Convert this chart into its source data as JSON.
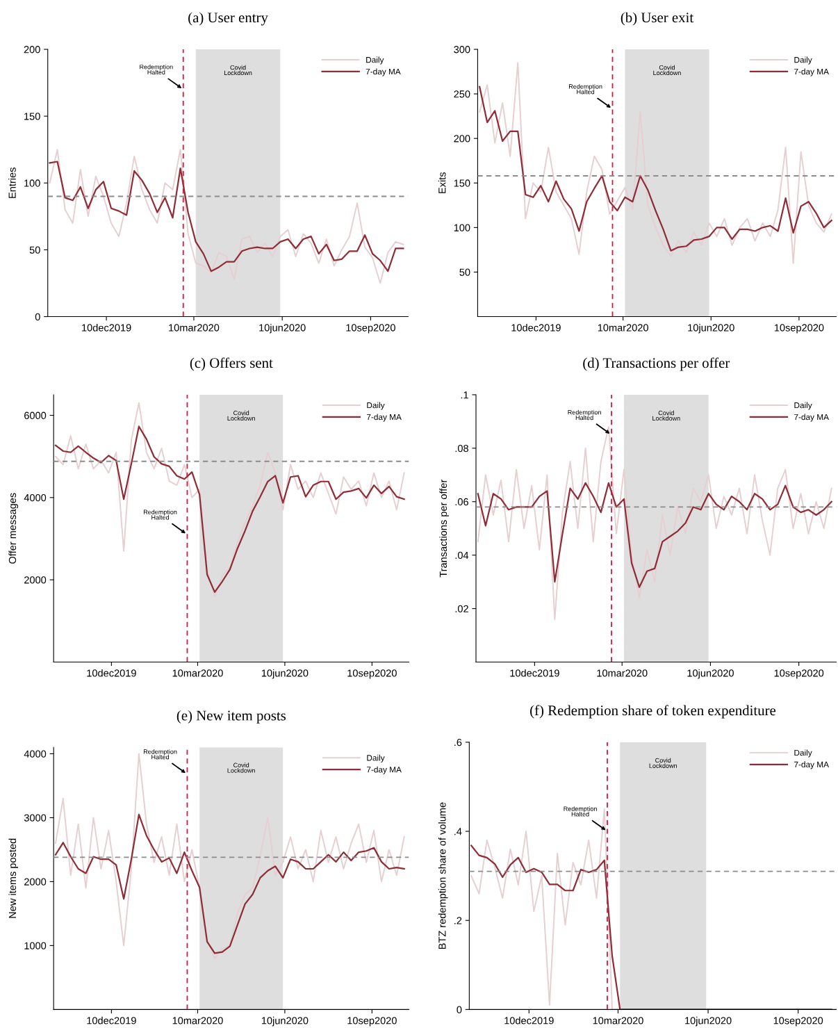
{
  "chart_data": [
    {
      "type": "line",
      "title": "(a) User entry",
      "ylabel": "Entries",
      "xlim": [
        "2019-10-10",
        "2020-10-19"
      ],
      "ylim": [
        0,
        200
      ],
      "yticks": [
        0,
        50,
        100,
        150,
        200
      ],
      "xticks": [
        {
          "value": "2019-12-10",
          "label": "10dec2019"
        },
        {
          "value": "2020-03-10",
          "label": "10mar2020"
        },
        {
          "value": "2020-06-10",
          "label": "10jun2020"
        },
        {
          "value": "2020-09-10",
          "label": "10sep2020"
        }
      ],
      "x": [
        "2019-10-12",
        "2019-10-20",
        "2019-10-28",
        "2019-11-05",
        "2019-11-13",
        "2019-11-21",
        "2019-11-29",
        "2019-12-07",
        "2019-12-15",
        "2019-12-23",
        "2019-12-31",
        "2020-01-08",
        "2020-01-16",
        "2020-01-24",
        "2020-02-01",
        "2020-02-09",
        "2020-02-17",
        "2020-02-25",
        "2020-03-04",
        "2020-03-12",
        "2020-03-20",
        "2020-03-28",
        "2020-04-05",
        "2020-04-13",
        "2020-04-21",
        "2020-04-29",
        "2020-05-07",
        "2020-05-15",
        "2020-05-23",
        "2020-05-31",
        "2020-06-08",
        "2020-06-16",
        "2020-06-24",
        "2020-07-02",
        "2020-07-10",
        "2020-07-18",
        "2020-07-26",
        "2020-08-03",
        "2020-08-11",
        "2020-08-19",
        "2020-08-27",
        "2020-09-04",
        "2020-09-12",
        "2020-09-20",
        "2020-09-28",
        "2020-10-06",
        "2020-10-14"
      ],
      "series": [
        {
          "name": "Daily",
          "color": "#e6cfd1",
          "values": [
            100,
            125,
            80,
            70,
            110,
            75,
            105,
            90,
            70,
            60,
            85,
            120,
            95,
            80,
            70,
            100,
            95,
            125,
            62,
            40,
            38,
            33,
            48,
            45,
            28,
            58,
            60,
            48,
            55,
            45,
            60,
            65,
            45,
            62,
            55,
            40,
            58,
            38,
            50,
            60,
            85,
            52,
            44,
            25,
            48,
            56,
            54
          ]
        },
        {
          "name": "7-day MA",
          "color": "#8f2d37",
          "values": [
            115,
            116,
            89,
            87,
            97,
            81,
            95,
            101,
            81,
            79,
            76,
            109,
            102,
            92,
            78,
            89,
            74,
            111,
            78,
            56,
            47,
            34,
            37,
            41,
            41,
            49,
            51,
            52,
            51,
            51,
            56,
            58,
            51,
            58,
            60,
            47,
            54,
            42,
            43,
            49,
            49,
            61,
            47,
            42,
            34,
            51,
            51
          ]
        }
      ],
      "ref_lines": [
        {
          "axis": "x",
          "value": "2020-02-28",
          "color": "#dc143c",
          "line_style": "dashed"
        },
        {
          "axis": "y",
          "value": 90,
          "color": "#8c8c8c",
          "line_style": "dashed"
        }
      ],
      "bands": [
        {
          "axis": "x",
          "from": "2020-03-12",
          "to": "2020-06-08",
          "label": "Covid\nLockdown",
          "color": "#dedede"
        }
      ],
      "annotations": [
        {
          "text": "Redemption\nHalted",
          "x": "2020-02-28",
          "y": 170
        }
      ],
      "legend": "top right",
      "grid": false
    },
    {
      "type": "line",
      "title": "(b) User exit",
      "ylabel": "Exits",
      "xlim": [
        "2019-10-10",
        "2020-10-19"
      ],
      "ylim": [
        0,
        300
      ],
      "yticks": [
        50,
        100,
        150,
        200,
        250,
        300
      ],
      "xticks": [
        {
          "value": "2019-12-10",
          "label": "10dec2019"
        },
        {
          "value": "2020-03-10",
          "label": "10mar2020"
        },
        {
          "value": "2020-06-10",
          "label": "10jun2020"
        },
        {
          "value": "2020-09-10",
          "label": "10sep2020"
        }
      ],
      "x": [
        "2019-10-12",
        "2019-10-20",
        "2019-10-28",
        "2019-11-05",
        "2019-11-13",
        "2019-11-21",
        "2019-11-29",
        "2019-12-07",
        "2019-12-15",
        "2019-12-23",
        "2019-12-31",
        "2020-01-08",
        "2020-01-16",
        "2020-01-24",
        "2020-02-01",
        "2020-02-09",
        "2020-02-17",
        "2020-02-25",
        "2020-03-04",
        "2020-03-12",
        "2020-03-20",
        "2020-03-28",
        "2020-04-05",
        "2020-04-13",
        "2020-04-21",
        "2020-04-29",
        "2020-05-07",
        "2020-05-15",
        "2020-05-23",
        "2020-05-31",
        "2020-06-08",
        "2020-06-16",
        "2020-06-24",
        "2020-07-02",
        "2020-07-10",
        "2020-07-18",
        "2020-07-26",
        "2020-08-03",
        "2020-08-11",
        "2020-08-19",
        "2020-08-27",
        "2020-09-04",
        "2020-09-12",
        "2020-09-20",
        "2020-09-28",
        "2020-10-06",
        "2020-10-14"
      ],
      "series": [
        {
          "name": "Daily",
          "color": "#e6cfd1",
          "values": [
            230,
            260,
            195,
            240,
            180,
            285,
            110,
            150,
            140,
            190,
            140,
            125,
            110,
            70,
            140,
            180,
            165,
            115,
            130,
            145,
            120,
            230,
            125,
            100,
            80,
            68,
            85,
            72,
            95,
            80,
            105,
            90,
            110,
            80,
            100,
            110,
            85,
            105,
            90,
            120,
            190,
            60,
            185,
            125,
            105,
            95,
            115
          ]
        },
        {
          "name": "7-day MA",
          "color": "#8f2d37",
          "values": [
            258,
            218,
            231,
            197,
            208,
            208,
            137,
            134,
            147,
            129,
            152,
            132,
            121,
            96,
            129,
            144,
            158,
            129,
            119,
            134,
            129,
            158,
            142,
            119,
            98,
            74,
            78,
            79,
            86,
            87,
            90,
            100,
            100,
            87,
            98,
            98,
            96,
            100,
            102,
            96,
            133,
            94,
            124,
            129,
            116,
            100,
            108
          ]
        }
      ],
      "ref_lines": [
        {
          "axis": "x",
          "value": "2020-02-28",
          "color": "#dc143c",
          "line_style": "dashed"
        },
        {
          "axis": "y",
          "value": 158,
          "color": "#8c8c8c",
          "line_style": "dashed"
        }
      ],
      "bands": [
        {
          "axis": "x",
          "from": "2020-03-12",
          "to": "2020-06-08",
          "label": "Covid\nLockdown",
          "color": "#dedede"
        }
      ],
      "annotations": [
        {
          "text": "Redemption\nHalted",
          "x": "2020-02-28",
          "y": 233
        }
      ],
      "legend": "top right",
      "grid": false
    },
    {
      "type": "line",
      "title": "(c) Offers sent",
      "ylabel": "Offer messages",
      "xlim": [
        "2019-10-10",
        "2020-10-19"
      ],
      "ylim": [
        0,
        6500
      ],
      "yticks": [
        2000,
        4000,
        6000
      ],
      "xticks": [
        {
          "value": "2019-12-10",
          "label": "10dec2019"
        },
        {
          "value": "2020-03-10",
          "label": "10mar2020"
        },
        {
          "value": "2020-06-10",
          "label": "10jun2020"
        },
        {
          "value": "2020-09-10",
          "label": "10sep2020"
        }
      ],
      "x": [
        "2019-10-12",
        "2019-10-20",
        "2019-10-28",
        "2019-11-05",
        "2019-11-13",
        "2019-11-21",
        "2019-11-29",
        "2019-12-07",
        "2019-12-15",
        "2019-12-23",
        "2019-12-31",
        "2020-01-08",
        "2020-01-16",
        "2020-01-24",
        "2020-02-01",
        "2020-02-09",
        "2020-02-17",
        "2020-02-25",
        "2020-03-04",
        "2020-03-12",
        "2020-03-20",
        "2020-03-28",
        "2020-04-05",
        "2020-04-13",
        "2020-04-21",
        "2020-04-29",
        "2020-05-07",
        "2020-05-15",
        "2020-05-23",
        "2020-05-31",
        "2020-06-08",
        "2020-06-16",
        "2020-06-24",
        "2020-07-02",
        "2020-07-10",
        "2020-07-18",
        "2020-07-26",
        "2020-08-03",
        "2020-08-11",
        "2020-08-19",
        "2020-08-27",
        "2020-09-04",
        "2020-09-12",
        "2020-09-20",
        "2020-09-28",
        "2020-10-06",
        "2020-10-14"
      ],
      "series": [
        {
          "name": "Daily",
          "color": "#e6cfd1",
          "values": [
            5000,
            4800,
            5500,
            4700,
            5300,
            4700,
            4900,
            4600,
            5100,
            2700,
            5400,
            6300,
            5100,
            4700,
            5200,
            4400,
            4300,
            4800,
            4000,
            4200,
            2200,
            1600,
            2100,
            2300,
            2900,
            3400,
            3800,
            4300,
            5100,
            4600,
            3700,
            4800,
            4200,
            4400,
            4000,
            4600,
            4100,
            3600,
            4500,
            4200,
            4400,
            3800,
            4600,
            4000,
            4400,
            3700,
            4600
          ]
        },
        {
          "name": "7-day MA",
          "color": "#8f2d37",
          "values": [
            5270,
            5130,
            5100,
            5250,
            5100,
            4960,
            4850,
            5020,
            4900,
            3960,
            4820,
            5730,
            5420,
            4990,
            4820,
            4760,
            4530,
            4450,
            4620,
            4070,
            2130,
            1700,
            1960,
            2250,
            2760,
            3190,
            3670,
            4020,
            4390,
            4530,
            3870,
            4500,
            4530,
            4020,
            4300,
            4390,
            4390,
            3960,
            4130,
            4160,
            4220,
            3990,
            4300,
            4100,
            4270,
            4020,
            3960
          ]
        }
      ],
      "ref_lines": [
        {
          "axis": "x",
          "value": "2020-02-28",
          "color": "#dc143c",
          "line_style": "dashed"
        },
        {
          "axis": "y",
          "value": 4880,
          "color": "#8c8c8c",
          "line_style": "dashed"
        }
      ],
      "bands": [
        {
          "axis": "x",
          "from": "2020-03-12",
          "to": "2020-06-08",
          "label": "Covid\nLockdown",
          "color": "#dedede"
        }
      ],
      "annotations": [
        {
          "text": "Redemption\nHalted",
          "x": "2020-02-28",
          "y": 3100
        }
      ],
      "legend": "top right",
      "grid": false
    },
    {
      "type": "line",
      "title": "(d) Transactions per offer",
      "ylabel": "Transactions per offer",
      "xlim": [
        "2019-10-10",
        "2020-10-19"
      ],
      "ylim": [
        0,
        0.1
      ],
      "yticks": [
        {
          "value": 0.02,
          "label": ".02"
        },
        {
          "value": 0.04,
          "label": ".04"
        },
        {
          "value": 0.06,
          "label": ".06"
        },
        {
          "value": 0.08,
          "label": ".08"
        },
        {
          "value": 0.1,
          "label": ".1"
        }
      ],
      "xticks": [
        {
          "value": "2019-12-10",
          "label": "10dec2019"
        },
        {
          "value": "2020-03-10",
          "label": "10mar2020"
        },
        {
          "value": "2020-06-10",
          "label": "10jun2020"
        },
        {
          "value": "2020-09-10",
          "label": "10sep2020"
        }
      ],
      "x": [
        "2019-10-12",
        "2019-10-20",
        "2019-10-28",
        "2019-11-05",
        "2019-11-13",
        "2019-11-21",
        "2019-11-29",
        "2019-12-07",
        "2019-12-15",
        "2019-12-23",
        "2019-12-31",
        "2020-01-08",
        "2020-01-16",
        "2020-01-24",
        "2020-02-01",
        "2020-02-09",
        "2020-02-17",
        "2020-02-25",
        "2020-03-04",
        "2020-03-12",
        "2020-03-20",
        "2020-03-28",
        "2020-04-05",
        "2020-04-13",
        "2020-04-21",
        "2020-04-29",
        "2020-05-07",
        "2020-05-15",
        "2020-05-23",
        "2020-05-31",
        "2020-06-08",
        "2020-06-16",
        "2020-06-24",
        "2020-07-02",
        "2020-07-10",
        "2020-07-18",
        "2020-07-26",
        "2020-08-03",
        "2020-08-11",
        "2020-08-19",
        "2020-08-27",
        "2020-09-04",
        "2020-09-12",
        "2020-09-20",
        "2020-09-28",
        "2020-10-06",
        "2020-10-14"
      ],
      "series": [
        {
          "name": "Daily",
          "color": "#e6cfd1",
          "values": [
            0.045,
            0.07,
            0.055,
            0.068,
            0.045,
            0.072,
            0.05,
            0.066,
            0.042,
            0.07,
            0.016,
            0.056,
            0.075,
            0.05,
            0.08,
            0.045,
            0.075,
            0.088,
            0.048,
            0.072,
            0.04,
            0.024,
            0.042,
            0.03,
            0.055,
            0.04,
            0.058,
            0.048,
            0.065,
            0.06,
            0.07,
            0.05,
            0.062,
            0.055,
            0.065,
            0.048,
            0.07,
            0.053,
            0.04,
            0.065,
            0.072,
            0.05,
            0.063,
            0.048,
            0.06,
            0.05,
            0.065
          ]
        },
        {
          "name": "7-day MA",
          "color": "#8f2d37",
          "values": [
            0.063,
            0.051,
            0.063,
            0.061,
            0.057,
            0.058,
            0.058,
            0.058,
            0.062,
            0.064,
            0.03,
            0.048,
            0.065,
            0.061,
            0.067,
            0.062,
            0.056,
            0.067,
            0.058,
            0.061,
            0.037,
            0.028,
            0.034,
            0.035,
            0.045,
            0.047,
            0.049,
            0.052,
            0.058,
            0.057,
            0.063,
            0.059,
            0.057,
            0.062,
            0.06,
            0.057,
            0.063,
            0.061,
            0.057,
            0.059,
            0.066,
            0.058,
            0.056,
            0.057,
            0.055,
            0.057,
            0.06
          ]
        }
      ],
      "ref_lines": [
        {
          "axis": "x",
          "value": "2020-02-28",
          "color": "#dc143c",
          "line_style": "dashed"
        },
        {
          "axis": "y",
          "value": 0.058,
          "color": "#8c8c8c",
          "line_style": "dashed"
        }
      ],
      "bands": [
        {
          "axis": "x",
          "from": "2020-03-12",
          "to": "2020-06-08",
          "label": "Covid\nLockdown",
          "color": "#dedede"
        }
      ],
      "annotations": [
        {
          "text": "Redemption\nHalted",
          "x": "2020-02-28",
          "y": 0.085
        }
      ],
      "legend": "top right",
      "grid": false
    },
    {
      "type": "line",
      "title": "(e) New item posts",
      "ylabel": "New items posted",
      "xlim": [
        "2019-10-10",
        "2020-10-19"
      ],
      "ylim": [
        0,
        4100
      ],
      "yticks": [
        1000,
        2000,
        3000,
        4000
      ],
      "xticks": [
        {
          "value": "2019-12-10",
          "label": "10dec2019"
        },
        {
          "value": "2020-03-10",
          "label": "10mar2020"
        },
        {
          "value": "2020-06-10",
          "label": "10jun2020"
        },
        {
          "value": "2020-09-10",
          "label": "10sep2020"
        }
      ],
      "x": [
        "2019-10-12",
        "2019-10-20",
        "2019-10-28",
        "2019-11-05",
        "2019-11-13",
        "2019-11-21",
        "2019-11-29",
        "2019-12-07",
        "2019-12-15",
        "2019-12-23",
        "2019-12-31",
        "2020-01-08",
        "2020-01-16",
        "2020-01-24",
        "2020-02-01",
        "2020-02-09",
        "2020-02-17",
        "2020-02-25",
        "2020-03-04",
        "2020-03-12",
        "2020-03-20",
        "2020-03-28",
        "2020-04-05",
        "2020-04-13",
        "2020-04-21",
        "2020-04-29",
        "2020-05-07",
        "2020-05-15",
        "2020-05-23",
        "2020-05-31",
        "2020-06-08",
        "2020-06-16",
        "2020-06-24",
        "2020-07-02",
        "2020-07-10",
        "2020-07-18",
        "2020-07-26",
        "2020-08-03",
        "2020-08-11",
        "2020-08-19",
        "2020-08-27",
        "2020-09-04",
        "2020-09-12",
        "2020-09-20",
        "2020-09-28",
        "2020-10-06",
        "2020-10-14"
      ],
      "series": [
        {
          "name": "Daily",
          "color": "#e6cfd1",
          "values": [
            2600,
            3300,
            2100,
            2900,
            1900,
            3000,
            2200,
            2800,
            2000,
            1000,
            2200,
            4000,
            2900,
            2300,
            2700,
            2100,
            2900,
            2000,
            2500,
            1900,
            1100,
            800,
            950,
            1000,
            1500,
            1800,
            1900,
            2400,
            3000,
            2100,
            2300,
            2700,
            2200,
            2500,
            2000,
            2800,
            2300,
            2700,
            2200,
            2600,
            2900,
            2300,
            2800,
            2000,
            2500,
            2100,
            2700
          ]
        },
        {
          "name": "7-day MA",
          "color": "#8f2d37",
          "values": [
            2420,
            2610,
            2390,
            2200,
            2130,
            2390,
            2350,
            2350,
            2260,
            1730,
            2350,
            3050,
            2720,
            2500,
            2310,
            2370,
            2130,
            2460,
            2170,
            1910,
            1060,
            880,
            900,
            990,
            1320,
            1650,
            1800,
            2060,
            2170,
            2240,
            2060,
            2350,
            2310,
            2200,
            2200,
            2310,
            2420,
            2310,
            2460,
            2330,
            2460,
            2480,
            2530,
            2310,
            2200,
            2220,
            2200
          ]
        }
      ],
      "ref_lines": [
        {
          "axis": "x",
          "value": "2020-02-28",
          "color": "#dc143c",
          "line_style": "dashed"
        },
        {
          "axis": "y",
          "value": 2380,
          "color": "#8c8c8c",
          "line_style": "dashed"
        }
      ],
      "bands": [
        {
          "axis": "x",
          "from": "2020-03-12",
          "to": "2020-06-08",
          "label": "Covid\nLockdown",
          "color": "#dedede"
        }
      ],
      "annotations": [
        {
          "text": "Redemption\nHalted",
          "x": "2020-02-28",
          "y": 3680
        }
      ],
      "legend": "top right",
      "grid": false
    },
    {
      "type": "line",
      "title": "(f) Redemption share of token expenditure",
      "ylabel": "BTZ redemption share of volume",
      "xlim": [
        "2019-10-10",
        "2020-10-19"
      ],
      "ylim": [
        0,
        0.6
      ],
      "yticks": [
        0,
        {
          "value": 0.2,
          "label": ".2"
        },
        {
          "value": 0.4,
          "label": ".4"
        },
        {
          "value": 0.6,
          "label": ".6"
        }
      ],
      "xticks": [
        {
          "value": "2019-12-10",
          "label": "10dec2019"
        },
        {
          "value": "2020-03-10",
          "label": "10mar2020"
        },
        {
          "value": "2020-06-10",
          "label": "10jun2020"
        },
        {
          "value": "2020-09-10",
          "label": "10sep2020"
        }
      ],
      "x": [
        "2019-10-12",
        "2019-10-20",
        "2019-10-28",
        "2019-11-05",
        "2019-11-13",
        "2019-11-21",
        "2019-11-29",
        "2019-12-07",
        "2019-12-15",
        "2019-12-23",
        "2019-12-31",
        "2020-01-08",
        "2020-01-16",
        "2020-01-24",
        "2020-02-01",
        "2020-02-09",
        "2020-02-17",
        "2020-02-25",
        "2020-03-04",
        "2020-03-12",
        "2020-03-20",
        "2020-03-28",
        "2020-04-05",
        "2020-04-13",
        "2020-04-21",
        "2020-04-29",
        "2020-05-07",
        "2020-05-15",
        "2020-05-23",
        "2020-05-31",
        "2020-06-08",
        "2020-06-16",
        "2020-06-24",
        "2020-07-02",
        "2020-07-10",
        "2020-07-18",
        "2020-07-26",
        "2020-08-03",
        "2020-08-11",
        "2020-08-19",
        "2020-08-27",
        "2020-09-04",
        "2020-09-12",
        "2020-09-20",
        "2020-09-28",
        "2020-10-06",
        "2020-10-14"
      ],
      "series": [
        {
          "name": "Daily",
          "color": "#e6cfd1",
          "values": [
            0.3,
            0.26,
            0.38,
            0.32,
            0.25,
            0.36,
            0.28,
            0.4,
            0.22,
            0.3,
            0.01,
            0.35,
            0.19,
            0.33,
            0.28,
            0.38,
            0.25,
            0.45,
            0,
            0,
            0,
            0,
            0,
            0,
            0,
            0,
            0,
            0,
            0,
            0,
            0,
            0,
            0,
            0,
            0,
            0,
            0,
            0,
            0,
            0,
            0,
            0,
            0,
            0,
            0,
            0,
            0
          ]
        },
        {
          "name": "7-day MA",
          "color": "#8f2d37",
          "values": [
            0.368,
            0.346,
            0.341,
            0.327,
            0.297,
            0.325,
            0.341,
            0.308,
            0.316,
            0.308,
            0.281,
            0.281,
            0.267,
            0.267,
            0.314,
            0.308,
            0.314,
            0.335,
            0.12,
            0,
            0,
            0,
            0,
            0,
            0,
            0,
            0,
            0,
            0,
            0,
            0,
            0,
            0,
            0,
            0,
            0,
            0,
            0,
            0,
            0,
            0,
            0,
            0,
            0,
            0,
            0,
            0
          ]
        }
      ],
      "ref_lines": [
        {
          "axis": "x",
          "value": "2020-02-28",
          "color": "#dc143c",
          "line_style": "dashed"
        },
        {
          "axis": "y",
          "value": 0.31,
          "color": "#8c8c8c",
          "line_style": "dashed"
        }
      ],
      "bands": [
        {
          "axis": "x",
          "from": "2020-03-12",
          "to": "2020-06-08",
          "label": "Covid\nLockdown",
          "color": "#dedede"
        }
      ],
      "annotations": [
        {
          "text": "Redemption\nHalted",
          "x": "2020-02-28",
          "y": 0.4
        }
      ],
      "legend": "top right",
      "grid": false
    }
  ]
}
